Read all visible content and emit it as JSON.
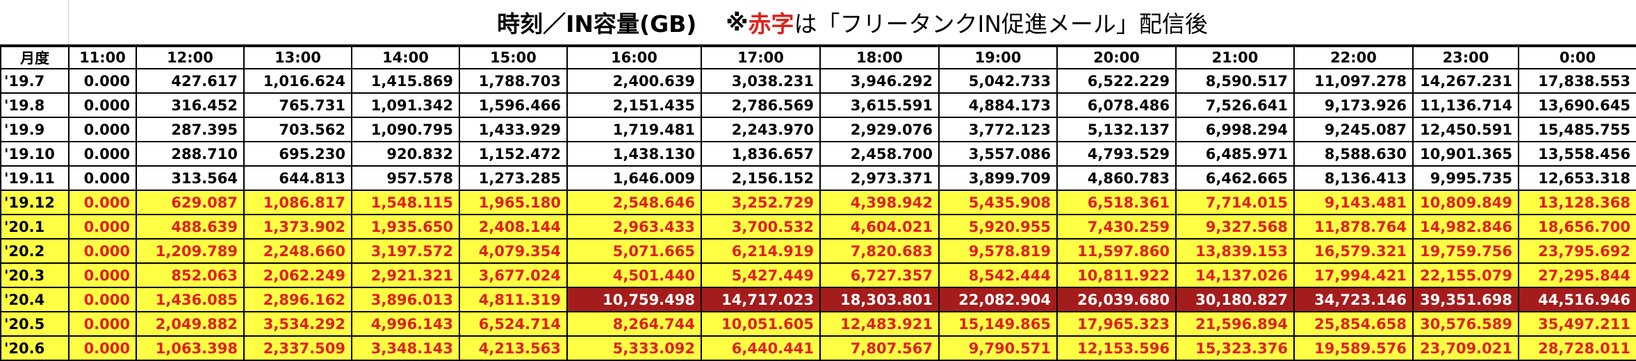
{
  "title": {
    "main": "時刻／IN容量(GB)",
    "mark": "※",
    "red": "赤字",
    "rest": "は「フリータンクIN促進メール」配信後"
  },
  "table": {
    "header": [
      "月度",
      "11:00",
      "12:00",
      "13:00",
      "14:00",
      "15:00",
      "16:00",
      "17:00",
      "18:00",
      "19:00",
      "20:00",
      "21:00",
      "22:00",
      "23:00",
      "0:00"
    ],
    "rows": [
      [
        "'19.7",
        "0.000",
        "427.617",
        "1,016.624",
        "1,415.869",
        "1,788.703",
        "2,400.639",
        "3,038.231",
        "3,946.292",
        "5,042.733",
        "6,522.229",
        "8,590.517",
        "11,097.278",
        "14,267.231",
        "17,838.553"
      ],
      [
        "'19.8",
        "0.000",
        "316.452",
        "765.731",
        "1,091.342",
        "1,596.466",
        "2,151.435",
        "2,786.569",
        "3,615.591",
        "4,884.173",
        "6,078.486",
        "7,526.641",
        "9,173.926",
        "11,136.714",
        "13,690.645"
      ],
      [
        "'19.9",
        "0.000",
        "287.395",
        "703.562",
        "1,090.795",
        "1,433.929",
        "1,719.481",
        "2,243.970",
        "2,929.076",
        "3,772.123",
        "5,132.137",
        "6,998.294",
        "9,245.087",
        "12,450.591",
        "15,485.755"
      ],
      [
        "'19.10",
        "0.000",
        "288.710",
        "695.230",
        "920.832",
        "1,152.472",
        "1,438.130",
        "1,836.657",
        "2,458.700",
        "3,557.086",
        "4,793.529",
        "6,485.971",
        "8,588.630",
        "10,901.365",
        "13,558.456"
      ],
      [
        "'19.11",
        "0.000",
        "313.564",
        "644.813",
        "957.578",
        "1,273.285",
        "1,646.009",
        "2,156.152",
        "2,973.371",
        "3,899.709",
        "4,860.783",
        "6,462.665",
        "8,136.413",
        "9,995.735",
        "12,653.318"
      ],
      [
        "'19.12",
        "0.000",
        "629.087",
        "1,086.817",
        "1,548.115",
        "1,965.180",
        "2,548.646",
        "3,252.729",
        "4,398.942",
        "5,435.908",
        "6,518.361",
        "7,714.015",
        "9,143.481",
        "10,809.849",
        "13,128.368"
      ],
      [
        "'20.1",
        "0.000",
        "488.639",
        "1,373.902",
        "1,935.650",
        "2,408.144",
        "2,963.433",
        "3,700.532",
        "4,604.021",
        "5,920.955",
        "7,430.259",
        "9,327.568",
        "11,878.764",
        "14,982.846",
        "18,656.700"
      ],
      [
        "'20.2",
        "0.000",
        "1,209.789",
        "2,248.660",
        "3,197.572",
        "4,079.354",
        "5,071.665",
        "6,214.919",
        "7,820.683",
        "9,578.819",
        "11,597.860",
        "13,839.153",
        "16,579.321",
        "19,759.756",
        "23,795.692"
      ],
      [
        "'20.3",
        "0.000",
        "852.063",
        "2,062.249",
        "2,921.321",
        "3,677.024",
        "4,501.440",
        "5,427.449",
        "6,727.357",
        "8,542.444",
        "10,811.922",
        "14,137.026",
        "17,994.421",
        "22,155.079",
        "27,295.844"
      ],
      [
        "'20.4",
        "0.000",
        "1,436.085",
        "2,896.162",
        "3,896.013",
        "4,811.319",
        "10,759.498",
        "14,717.023",
        "18,303.801",
        "22,082.904",
        "26,039.680",
        "30,180.827",
        "34,723.146",
        "39,351.698",
        "44,516.946"
      ],
      [
        "'20.5",
        "0.000",
        "2,049.882",
        "3,534.292",
        "4,996.143",
        "6,524.714",
        "8,264.744",
        "10,051.605",
        "12,483.921",
        "15,149.865",
        "17,965.323",
        "21,596.894",
        "25,854.658",
        "30,576.589",
        "35,497.211"
      ],
      [
        "'20.6",
        "0.000",
        "1,063.398",
        "2,337.509",
        "3,348.143",
        "4,213.563",
        "5,333.092",
        "6,440.441",
        "7,807.567",
        "9,790.571",
        "12,153.596",
        "15,323.376",
        "19,589.576",
        "23,709.021",
        "28,728.011"
      ]
    ]
  }
}
